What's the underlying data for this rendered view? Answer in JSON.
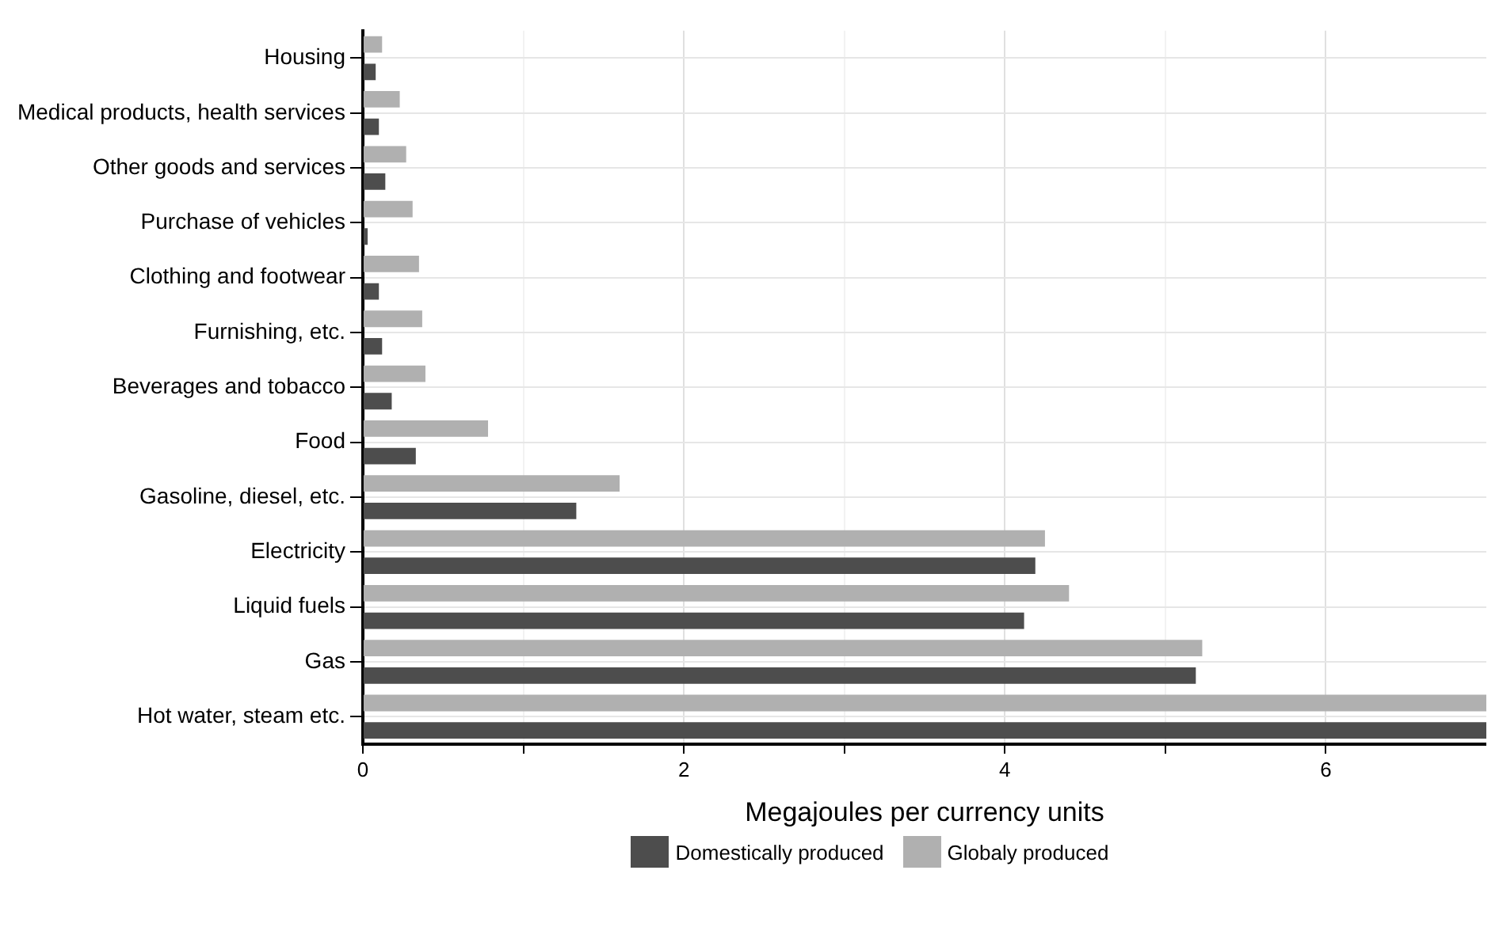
{
  "chart_data": {
    "type": "bar",
    "orientation": "horizontal",
    "xlabel": "Megajoules per currency units",
    "categories": [
      "Housing",
      "Medical products, health services",
      "Other goods and services",
      "Purchase of vehicles",
      "Clothing and footwear",
      "Furnishing, etc.",
      "Beverages and tobacco",
      "Food",
      "Gasoline, diesel, etc.",
      "Electricity",
      "Liquid fuels",
      "Gas",
      "Hot water, steam etc."
    ],
    "series": [
      {
        "name": "Globaly produced",
        "color": "#b0b0b0",
        "values": [
          0.12,
          0.23,
          0.27,
          0.31,
          0.35,
          0.37,
          0.39,
          0.78,
          1.6,
          4.25,
          4.4,
          5.23,
          7
        ]
      },
      {
        "name": "Domestically produced",
        "color": "#4d4d4d",
        "values": [
          0.08,
          0.1,
          0.14,
          0.03,
          0.1,
          0.12,
          0.18,
          0.33,
          1.33,
          4.19,
          4.12,
          5.19,
          7
        ]
      }
    ],
    "xlim": [
      0,
      7
    ],
    "xticks": [
      0,
      {
        "value": 1,
        "label": null
      },
      2,
      {
        "value": 3,
        "label": null
      },
      4,
      {
        "value": 5,
        "label": null
      },
      6
    ],
    "grid": true,
    "legend": "bottom"
  }
}
